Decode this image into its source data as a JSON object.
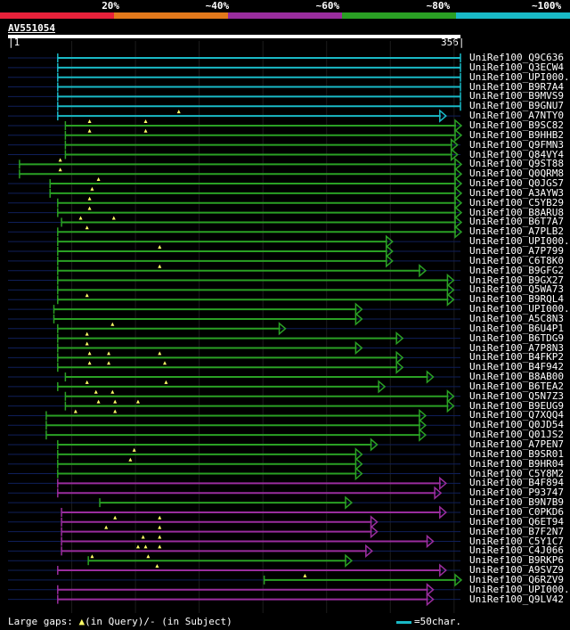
{
  "scale": {
    "labels": [
      "20%",
      "~40%",
      "~60%",
      "~80%",
      "~100%"
    ],
    "colors": [
      "#e8213a",
      "#e3791b",
      "#9a2d9e",
      "#2aa024",
      "#19b9c6"
    ]
  },
  "query": {
    "name": "AV551054",
    "start": 1,
    "end": 356,
    "length": 356
  },
  "colors": {
    "cyan": "#19b9c6",
    "green": "#2aa024",
    "purple": "#9a2d9e",
    "dash": "#0f1f5a",
    "gap_marker": "#ffff66"
  },
  "hits": [
    {
      "name": "UniRef100_Q9C636",
      "color": "cyan",
      "start": 40,
      "end": 356,
      "arrow": false,
      "gaps": []
    },
    {
      "name": "UniRef100_Q3ECW4",
      "color": "cyan",
      "start": 40,
      "end": 356,
      "arrow": false,
      "gaps": []
    },
    {
      "name": "UniRef100_UPI000..",
      "color": "cyan",
      "start": 40,
      "end": 356,
      "arrow": false,
      "gaps": []
    },
    {
      "name": "UniRef100_B9R7A4",
      "color": "cyan",
      "start": 40,
      "end": 356,
      "arrow": false,
      "gaps": []
    },
    {
      "name": "UniRef100_B9MVS9",
      "color": "cyan",
      "start": 40,
      "end": 356,
      "arrow": false,
      "gaps": []
    },
    {
      "name": "UniRef100_B9GNU7",
      "color": "cyan",
      "start": 40,
      "end": 356,
      "arrow": false,
      "gaps": []
    },
    {
      "name": "UniRef100_A7NTY0",
      "color": "cyan",
      "start": 40,
      "end": 344,
      "arrow": true,
      "gaps": [
        135
      ]
    },
    {
      "name": "UniRef100_B9SC82",
      "color": "green",
      "start": 46,
      "end": 356,
      "arrow": true,
      "gaps": [
        65,
        109
      ]
    },
    {
      "name": "UniRef100_B9HHB2",
      "color": "green",
      "start": 46,
      "end": 356,
      "arrow": true,
      "gaps": [
        65,
        109
      ]
    },
    {
      "name": "UniRef100_Q9FMN3",
      "color": "green",
      "start": 46,
      "end": 353,
      "arrow": true,
      "gaps": []
    },
    {
      "name": "UniRef100_Q84VY4",
      "color": "green",
      "start": 46,
      "end": 353,
      "arrow": true,
      "gaps": []
    },
    {
      "name": "UniRef100_Q9ST88",
      "color": "green",
      "start": 10,
      "end": 356,
      "arrow": true,
      "gaps": [
        42
      ]
    },
    {
      "name": "UniRef100_Q0QRM8",
      "color": "green",
      "start": 10,
      "end": 356,
      "arrow": true,
      "gaps": [
        42
      ]
    },
    {
      "name": "UniRef100_Q0JGS7",
      "color": "green",
      "start": 34,
      "end": 356,
      "arrow": true,
      "gaps": [
        72
      ]
    },
    {
      "name": "UniRef100_A3AYW3",
      "color": "green",
      "start": 34,
      "end": 356,
      "arrow": true,
      "gaps": [
        67
      ]
    },
    {
      "name": "UniRef100_C5YB29",
      "color": "green",
      "start": 40,
      "end": 356,
      "arrow": true,
      "gaps": [
        65
      ]
    },
    {
      "name": "UniRef100_B8ARU8",
      "color": "green",
      "start": 40,
      "end": 356,
      "arrow": true,
      "gaps": [
        65
      ]
    },
    {
      "name": "UniRef100_B6T7A7",
      "color": "green",
      "start": 43,
      "end": 356,
      "arrow": true,
      "gaps": [
        58,
        84
      ]
    },
    {
      "name": "UniRef100_A7PLB2",
      "color": "green",
      "start": 40,
      "end": 356,
      "arrow": true,
      "gaps": [
        63
      ]
    },
    {
      "name": "UniRef100_UPI000...",
      "color": "green",
      "start": 40,
      "end": 302,
      "arrow": true,
      "gaps": []
    },
    {
      "name": "UniRef100_A7P799",
      "color": "green",
      "start": 40,
      "end": 302,
      "arrow": true,
      "gaps": [
        120
      ]
    },
    {
      "name": "UniRef100_C6T8K0",
      "color": "green",
      "start": 40,
      "end": 302,
      "arrow": true,
      "gaps": []
    },
    {
      "name": "UniRef100_B9GFG2",
      "color": "green",
      "start": 40,
      "end": 328,
      "arrow": true,
      "gaps": [
        120
      ]
    },
    {
      "name": "UniRef100_B9GX27",
      "color": "green",
      "start": 40,
      "end": 350,
      "arrow": true,
      "gaps": []
    },
    {
      "name": "UniRef100_Q5WA73",
      "color": "green",
      "start": 40,
      "end": 350,
      "arrow": true,
      "gaps": []
    },
    {
      "name": "UniRef100_B9RQL4",
      "color": "green",
      "start": 40,
      "end": 350,
      "arrow": true,
      "gaps": [
        63
      ]
    },
    {
      "name": "UniRef100_UPI000...",
      "color": "green",
      "start": 37,
      "end": 278,
      "arrow": true,
      "gaps": []
    },
    {
      "name": "UniRef100_A5C8N3",
      "color": "green",
      "start": 37,
      "end": 278,
      "arrow": true,
      "gaps": []
    },
    {
      "name": "UniRef100_B6U4P1",
      "color": "green",
      "start": 40,
      "end": 218,
      "arrow": true,
      "gaps": [
        83
      ]
    },
    {
      "name": "UniRef100_B6TDG9",
      "color": "green",
      "start": 40,
      "end": 310,
      "arrow": true,
      "gaps": [
        63
      ]
    },
    {
      "name": "UniRef100_A7P8N3",
      "color": "green",
      "start": 40,
      "end": 278,
      "arrow": true,
      "gaps": [
        63
      ]
    },
    {
      "name": "UniRef100_B4FKP2",
      "color": "green",
      "start": 40,
      "end": 310,
      "arrow": true,
      "gaps": [
        65,
        80,
        120
      ]
    },
    {
      "name": "UniRef100_B4F942",
      "color": "green",
      "start": 40,
      "end": 310,
      "arrow": true,
      "gaps": [
        65,
        80,
        124
      ]
    },
    {
      "name": "UniRef100_B8AB00",
      "color": "green",
      "start": 46,
      "end": 334,
      "arrow": true,
      "gaps": []
    },
    {
      "name": "UniRef100_B6TEA2",
      "color": "green",
      "start": 40,
      "end": 296,
      "arrow": true,
      "gaps": [
        63,
        125
      ]
    },
    {
      "name": "UniRef100_Q5N7Z3",
      "color": "green",
      "start": 46,
      "end": 350,
      "arrow": true,
      "gaps": [
        70,
        83
      ]
    },
    {
      "name": "UniRef100_B9EUG9",
      "color": "green",
      "start": 46,
      "end": 350,
      "arrow": true,
      "gaps": [
        72,
        85,
        103
      ]
    },
    {
      "name": "UniRef100_Q7XQQ4",
      "color": "green",
      "start": 31,
      "end": 328,
      "arrow": true,
      "gaps": [
        54,
        85
      ]
    },
    {
      "name": "UniRef100_Q0JD54",
      "color": "green",
      "start": 31,
      "end": 328,
      "arrow": true,
      "gaps": []
    },
    {
      "name": "UniRef100_Q01JS2",
      "color": "green",
      "start": 31,
      "end": 328,
      "arrow": true,
      "gaps": []
    },
    {
      "name": "UniRef100_A7PEN7",
      "color": "green",
      "start": 40,
      "end": 290,
      "arrow": true,
      "gaps": []
    },
    {
      "name": "UniRef100_B9SR01",
      "color": "green",
      "start": 40,
      "end": 278,
      "arrow": true,
      "gaps": [
        100
      ]
    },
    {
      "name": "UniRef100_B9HR04",
      "color": "green",
      "start": 40,
      "end": 278,
      "arrow": true,
      "gaps": [
        97
      ]
    },
    {
      "name": "UniRef100_C5Y8M2",
      "color": "green",
      "start": 40,
      "end": 278,
      "arrow": true,
      "gaps": []
    },
    {
      "name": "UniRef100_B4F894",
      "color": "purple",
      "start": 40,
      "end": 344,
      "arrow": true,
      "gaps": []
    },
    {
      "name": "UniRef100_P93747",
      "color": "purple",
      "start": 40,
      "end": 340,
      "arrow": true,
      "gaps": []
    },
    {
      "name": "UniRef100_B9N7B9",
      "color": "green",
      "start": 73,
      "end": 270,
      "arrow": true,
      "gaps": []
    },
    {
      "name": "UniRef100_C0PKD6",
      "color": "purple",
      "start": 43,
      "end": 344,
      "arrow": true,
      "gaps": []
    },
    {
      "name": "UniRef100_Q6ET94",
      "color": "purple",
      "start": 43,
      "end": 290,
      "arrow": true,
      "gaps": [
        85,
        120
      ]
    },
    {
      "name": "UniRef100_B7F2N7",
      "color": "purple",
      "start": 43,
      "end": 290,
      "arrow": true,
      "gaps": [
        78,
        120
      ]
    },
    {
      "name": "UniRef100_C5Y1C7",
      "color": "purple",
      "start": 43,
      "end": 334,
      "arrow": true,
      "gaps": [
        107,
        120
      ]
    },
    {
      "name": "UniRef100_C4J066",
      "color": "purple",
      "start": 43,
      "end": 286,
      "arrow": true,
      "gaps": [
        103,
        109,
        120
      ]
    },
    {
      "name": "UniRef100_B9RKP6",
      "color": "green",
      "start": 64,
      "end": 270,
      "arrow": true,
      "gaps": [
        67,
        111
      ]
    },
    {
      "name": "UniRef100_A9SVZ9",
      "color": "purple",
      "start": 40,
      "end": 344,
      "arrow": true,
      "gaps": [
        118
      ]
    },
    {
      "name": "UniRef100_Q6RZV9",
      "color": "green",
      "start": 202,
      "end": 356,
      "arrow": true,
      "gaps": [
        234
      ]
    },
    {
      "name": "UniRef100_UPI000...",
      "color": "purple",
      "start": 40,
      "end": 334,
      "arrow": true,
      "gaps": []
    },
    {
      "name": "UniRef100_Q9LV42",
      "color": "purple",
      "start": 40,
      "end": 334,
      "arrow": true,
      "gaps": []
    }
  ],
  "footer": {
    "gaps_label": "Large gaps:",
    "query_gap_label": "(in Query)/",
    "subject_gap_label": "(in Subject)",
    "legend_label": "=50char."
  }
}
